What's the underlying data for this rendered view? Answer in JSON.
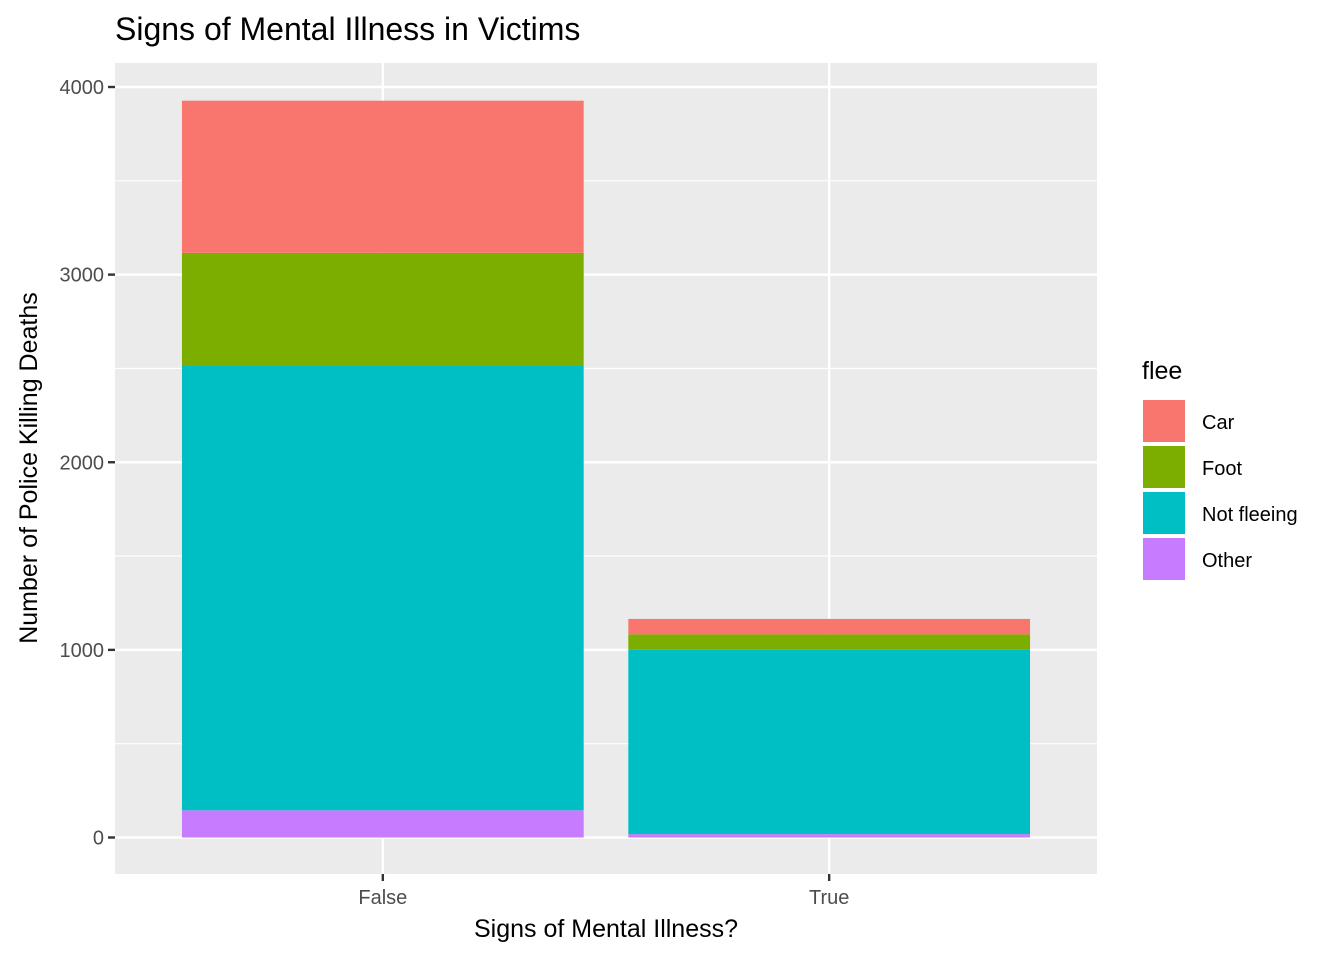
{
  "chart_data": {
    "type": "bar",
    "stacked": true,
    "title": "Signs of Mental Illness in Victims",
    "xlabel": "Signs of Mental Illness?",
    "ylabel": "Number of Police Killing Deaths",
    "categories": [
      "False",
      "True"
    ],
    "ylim": [
      -200,
      4130
    ],
    "yticks": [
      0,
      1000,
      2000,
      3000,
      4000
    ],
    "ytick_labels": [
      "0",
      "1000",
      "2000",
      "3000",
      "4000"
    ],
    "grid": true,
    "legend": {
      "title": "flee",
      "position": "right",
      "entries": [
        "Car",
        "Foot",
        "Not fleeing",
        "Other"
      ]
    },
    "series": [
      {
        "name": "Other",
        "color": "#C77CFF",
        "values": [
          145,
          18
        ]
      },
      {
        "name": "Not fleeing",
        "color": "#00BFC4",
        "values": [
          2368,
          985
        ]
      },
      {
        "name": "Foot",
        "color": "#7CAE00",
        "values": [
          603,
          80
        ]
      },
      {
        "name": "Car",
        "color": "#F8766D",
        "values": [
          811,
          82
        ]
      }
    ]
  }
}
